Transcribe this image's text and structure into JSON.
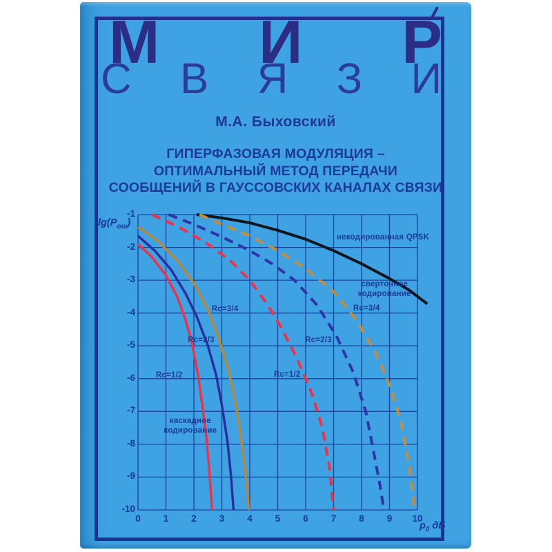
{
  "cover": {
    "series_title": "МИР",
    "series_subtitle": "СВЯЗИ",
    "author": "М.А. Быховский",
    "title_lines": [
      "ГИПЕРФАЗОВАЯ МОДУЛЯЦИЯ –",
      "ОПТИМАЛЬНЫЙ МЕТОД ПЕРЕДАЧИ",
      "СООБЩЕНИЙ В ГАУССОВСКИХ КАНАЛАХ СВЯЗИ"
    ]
  },
  "colors": {
    "cover_background": "#3fa2e3",
    "frame_navy": "#1d3190",
    "text_navy": "#1d3a9b",
    "grid_navy": "#1d41a0",
    "curve_red": "#ee3247",
    "curve_blue": "#2a2f9e",
    "curve_orange": "#b5893c",
    "curve_black": "#12161e"
  },
  "chart_data": {
    "type": "line",
    "title": "",
    "ylabel_parts": {
      "pre": "lg(P",
      "sub": "ош",
      "post": ")"
    },
    "xlabel_parts": {
      "pre": "ρ",
      "sub": "0",
      "post": " дБ"
    },
    "xlim": [
      0,
      10
    ],
    "ylim": [
      -10,
      -1
    ],
    "grid": true,
    "x_ticks": [
      "0",
      "1",
      "2",
      "3",
      "4",
      "5",
      "6",
      "7",
      "8",
      "9",
      "10"
    ],
    "y_ticks": [
      "-1",
      "-2",
      "-3",
      "-4",
      "-5",
      "-6",
      "-7",
      "-8",
      "-9",
      "-10"
    ],
    "series": [
      {
        "id": "uncoded-qpsk",
        "name": "некодированная QPSK",
        "color": "#12161e",
        "style": "solid",
        "width": 4,
        "points": [
          [
            2.1,
            -1
          ],
          [
            3,
            -1.1
          ],
          [
            4,
            -1.25
          ],
          [
            5,
            -1.48
          ],
          [
            6,
            -1.75
          ],
          [
            7,
            -2.1
          ],
          [
            8,
            -2.5
          ],
          [
            9,
            -2.95
          ],
          [
            9.7,
            -3.3
          ],
          [
            10.35,
            -3.72
          ]
        ]
      },
      {
        "id": "cascade-rc-1-2",
        "name": "каскадное кодирование Rc=1/2",
        "color": "#ee3247",
        "style": "solid",
        "width": 3.5,
        "points": [
          [
            0,
            -1.9
          ],
          [
            0.5,
            -2.3
          ],
          [
            1,
            -2.85
          ],
          [
            1.4,
            -3.5
          ],
          [
            1.7,
            -4.2
          ],
          [
            1.95,
            -5.0
          ],
          [
            2.15,
            -5.9
          ],
          [
            2.3,
            -6.8
          ],
          [
            2.45,
            -7.8
          ],
          [
            2.55,
            -8.8
          ],
          [
            2.65,
            -10
          ]
        ]
      },
      {
        "id": "cascade-rc-2-3",
        "name": "каскадное кодирование Rc=2/3",
        "color": "#2a2f9e",
        "style": "solid",
        "width": 3.5,
        "points": [
          [
            0,
            -1.65
          ],
          [
            0.6,
            -2.1
          ],
          [
            1.2,
            -2.7
          ],
          [
            1.7,
            -3.4
          ],
          [
            2.1,
            -4.1
          ],
          [
            2.5,
            -5.0
          ],
          [
            2.8,
            -5.9
          ],
          [
            3.0,
            -6.8
          ],
          [
            3.2,
            -7.9
          ],
          [
            3.32,
            -8.9
          ],
          [
            3.42,
            -10
          ]
        ]
      },
      {
        "id": "cascade-rc-3-4",
        "name": "каскадное кодирование Rc=3/4",
        "color": "#b5893c",
        "style": "solid",
        "width": 3.5,
        "points": [
          [
            0,
            -1.38
          ],
          [
            0.7,
            -1.8
          ],
          [
            1.4,
            -2.4
          ],
          [
            2.0,
            -3.1
          ],
          [
            2.5,
            -3.9
          ],
          [
            2.9,
            -4.8
          ],
          [
            3.25,
            -5.8
          ],
          [
            3.5,
            -6.8
          ],
          [
            3.7,
            -7.9
          ],
          [
            3.85,
            -8.9
          ],
          [
            3.97,
            -10
          ]
        ]
      },
      {
        "id": "conv-rc-1-2",
        "name": "сверточное кодирование Rc=1/2",
        "color": "#ee3247",
        "style": "dashed",
        "width": 4,
        "points": [
          [
            0.5,
            -1
          ],
          [
            1.5,
            -1.4
          ],
          [
            2.5,
            -1.9
          ],
          [
            3.3,
            -2.4
          ],
          [
            4.0,
            -3.0
          ],
          [
            4.6,
            -3.7
          ],
          [
            5.1,
            -4.4
          ],
          [
            5.7,
            -5.4
          ],
          [
            6.2,
            -6.4
          ],
          [
            6.6,
            -7.5
          ],
          [
            6.85,
            -8.7
          ],
          [
            7.0,
            -10
          ]
        ]
      },
      {
        "id": "conv-rc-2-3",
        "name": "сверточное кодирование Rc=2/3",
        "color": "#2f35a8",
        "style": "dashed",
        "width": 4,
        "points": [
          [
            1.1,
            -1
          ],
          [
            2.0,
            -1.3
          ],
          [
            3.0,
            -1.68
          ],
          [
            4.0,
            -2.1
          ],
          [
            4.8,
            -2.5
          ],
          [
            5.6,
            -3.0
          ],
          [
            6.4,
            -3.75
          ],
          [
            7.1,
            -4.7
          ],
          [
            7.7,
            -5.8
          ],
          [
            8.15,
            -7.0
          ],
          [
            8.45,
            -8.3
          ],
          [
            8.65,
            -9.2
          ],
          [
            8.8,
            -10
          ]
        ]
      },
      {
        "id": "conv-rc-3-4",
        "name": "сверточное кодирование Rc=3/4",
        "color": "#c08e3e",
        "style": "dashed",
        "width": 4,
        "points": [
          [
            2.2,
            -1
          ],
          [
            3.0,
            -1.3
          ],
          [
            4.0,
            -1.65
          ],
          [
            5.0,
            -2.1
          ],
          [
            6.0,
            -2.65
          ],
          [
            7.0,
            -3.35
          ],
          [
            7.8,
            -4.2
          ],
          [
            8.5,
            -5.2
          ],
          [
            9.0,
            -6.2
          ],
          [
            9.4,
            -7.3
          ],
          [
            9.7,
            -8.6
          ],
          [
            9.9,
            -10
          ]
        ]
      }
    ],
    "annotations": [
      {
        "id": "label-uncoded-qpsk",
        "text": "некодированная QPSK",
        "x": 7.11,
        "y": -1.55
      },
      {
        "id": "label-conv-coding",
        "text": "сверточное\nкодирование",
        "x": 7.4,
        "y": -2.98,
        "width": 115,
        "center": true
      },
      {
        "id": "label-conv-rc-3-4",
        "text": "Rc=3/4",
        "x": 7.7,
        "y": -3.71
      },
      {
        "id": "label-conv-rc-2-3",
        "text": "Rc=2/3",
        "x": 5.98,
        "y": -4.68
      },
      {
        "id": "label-conv-rc-1-2",
        "text": "Rc=1/2",
        "x": 4.86,
        "y": -5.73
      },
      {
        "id": "label-cascade-rc-3-4",
        "text": "Rc=3/4",
        "x": 2.64,
        "y": -3.73
      },
      {
        "id": "label-cascade-rc-2-3",
        "text": "Rc=2/3",
        "x": 1.78,
        "y": -4.68
      },
      {
        "id": "label-cascade-rc-1-2",
        "text": "Rc=1/2",
        "x": 0.64,
        "y": -5.75
      },
      {
        "id": "label-cascade-coding",
        "text": "каскадное\nкодирование",
        "x": 0.49,
        "y": -7.14,
        "width": 112,
        "center": true
      }
    ]
  }
}
